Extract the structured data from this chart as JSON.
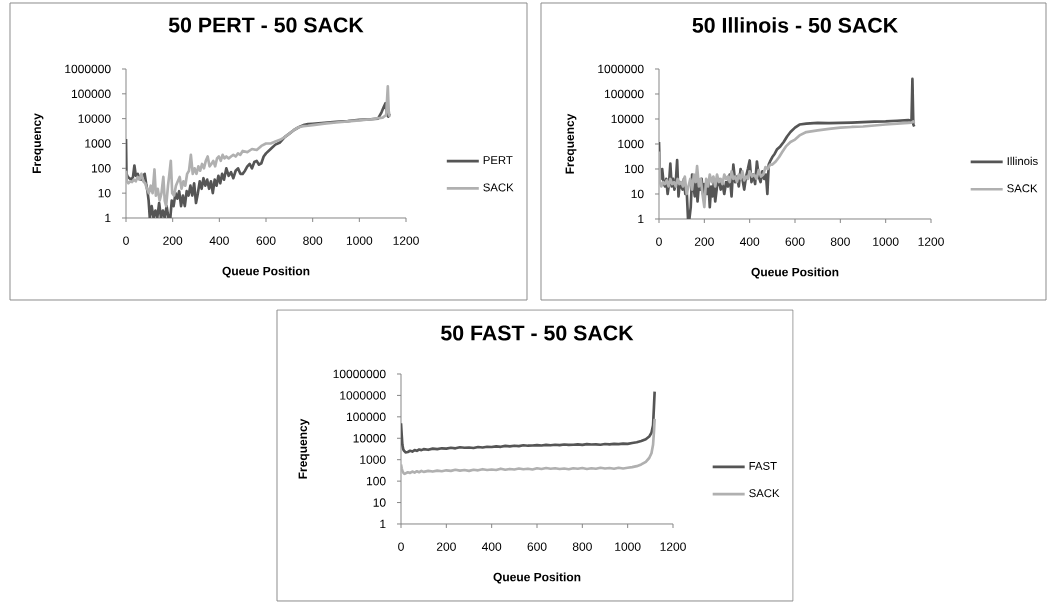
{
  "chart_data": [
    {
      "type": "line",
      "title": "50 PERT - 50 SACK",
      "xlabel": "Queue Position",
      "ylabel": "Frequency",
      "xlim": [
        0,
        1200
      ],
      "xticks": [
        0,
        200,
        400,
        600,
        800,
        1000,
        1200
      ],
      "ylim": [
        1,
        1000000
      ],
      "yticks": [
        1,
        10,
        100,
        1000,
        10000,
        100000,
        1000000
      ],
      "log": "y",
      "legend": "right",
      "series": [
        {
          "name": "PERT",
          "color": "#555555",
          "x": [
            0,
            2,
            8,
            15,
            22,
            30,
            36,
            42,
            50,
            58,
            65,
            72,
            80,
            86,
            92,
            97,
            102,
            110,
            118,
            126,
            134,
            142,
            150,
            158,
            166,
            174,
            182,
            190,
            196,
            204,
            212,
            220,
            228,
            236,
            244,
            252,
            260,
            268,
            276,
            284,
            292,
            300,
            308,
            316,
            324,
            332,
            340,
            348,
            356,
            364,
            372,
            380,
            388,
            396,
            404,
            412,
            420,
            430,
            440,
            450,
            460,
            470,
            480,
            490,
            500,
            510,
            520,
            530,
            540,
            550,
            560,
            570,
            580,
            590,
            600,
            620,
            640,
            660,
            680,
            700,
            720,
            740,
            760,
            780,
            800,
            850,
            900,
            950,
            1000,
            1050,
            1080,
            1095,
            1105,
            1112,
            1118,
            1124,
            1130
          ],
          "values": [
            1500,
            60,
            45,
            40,
            35,
            45,
            130,
            50,
            60,
            40,
            35,
            50,
            60,
            25,
            12,
            5,
            1,
            3,
            1,
            2,
            1,
            4,
            1,
            2,
            1,
            3,
            1,
            1,
            5,
            3,
            10,
            6,
            12,
            3,
            8,
            3,
            12,
            8,
            20,
            8,
            25,
            4,
            10,
            30,
            15,
            40,
            20,
            35,
            15,
            30,
            10,
            35,
            20,
            50,
            25,
            60,
            35,
            100,
            50,
            70,
            40,
            80,
            100,
            60,
            60,
            80,
            120,
            150,
            100,
            180,
            200,
            140,
            160,
            300,
            400,
            600,
            900,
            1100,
            1800,
            2500,
            3500,
            4500,
            5500,
            6000,
            6200,
            6800,
            7500,
            8000,
            9000,
            9500,
            10000,
            18000,
            30000,
            42000,
            15000,
            12000,
            16000
          ]
        },
        {
          "name": "SACK",
          "color": "#b0b0b0",
          "x": [
            0,
            4,
            10,
            18,
            26,
            34,
            42,
            50,
            58,
            66,
            74,
            82,
            90,
            98,
            106,
            114,
            122,
            128,
            136,
            144,
            152,
            160,
            166,
            172,
            180,
            186,
            192,
            198,
            206,
            214,
            222,
            230,
            238,
            246,
            254,
            262,
            270,
            278,
            286,
            294,
            302,
            310,
            318,
            326,
            334,
            342,
            350,
            358,
            366,
            374,
            382,
            390,
            398,
            406,
            414,
            422,
            430,
            440,
            450,
            460,
            470,
            480,
            490,
            500,
            520,
            540,
            560,
            580,
            600,
            620,
            640,
            660,
            680,
            700,
            720,
            740,
            760,
            780,
            800,
            850,
            900,
            950,
            1000,
            1050,
            1100,
            1115,
            1122,
            1126,
            1130
          ],
          "values": [
            80,
            30,
            25,
            30,
            28,
            35,
            30,
            45,
            35,
            60,
            30,
            25,
            15,
            10,
            20,
            10,
            90,
            8,
            15,
            5,
            10,
            45,
            5,
            3,
            20,
            60,
            200,
            10,
            8,
            20,
            30,
            45,
            15,
            30,
            20,
            60,
            80,
            350,
            60,
            100,
            60,
            120,
            80,
            150,
            100,
            200,
            300,
            120,
            150,
            200,
            120,
            250,
            300,
            200,
            350,
            250,
            300,
            250,
            300,
            350,
            300,
            400,
            350,
            500,
            450,
            600,
            550,
            800,
            1000,
            1000,
            1200,
            1400,
            1800,
            2500,
            3500,
            4500,
            5000,
            5200,
            5500,
            6300,
            7000,
            7800,
            8500,
            9500,
            11000,
            14000,
            200000,
            20000,
            12000
          ]
        }
      ]
    },
    {
      "type": "line",
      "title": "50 Illinois - 50 SACK",
      "xlabel": "Queue Position",
      "ylabel": "Frequency",
      "xlim": [
        0,
        1200
      ],
      "xticks": [
        0,
        200,
        400,
        600,
        800,
        1000,
        1200
      ],
      "ylim": [
        1,
        1000000
      ],
      "yticks": [
        1,
        10,
        100,
        1000,
        10000,
        100000,
        1000000
      ],
      "log": "y",
      "legend": "right",
      "series": [
        {
          "name": "Illinois",
          "color": "#555555",
          "x": [
            0,
            3,
            8,
            14,
            20,
            26,
            32,
            38,
            44,
            50,
            56,
            62,
            68,
            74,
            80,
            86,
            92,
            98,
            104,
            110,
            116,
            122,
            128,
            134,
            140,
            146,
            152,
            158,
            164,
            170,
            176,
            182,
            188,
            194,
            200,
            206,
            212,
            218,
            224,
            230,
            236,
            242,
            248,
            256,
            264,
            272,
            280,
            288,
            296,
            304,
            312,
            320,
            328,
            336,
            344,
            352,
            360,
            368,
            376,
            384,
            392,
            400,
            408,
            416,
            424,
            432,
            440,
            448,
            456,
            464,
            472,
            478,
            484,
            490,
            500,
            510,
            520,
            535,
            550,
            565,
            580,
            600,
            620,
            650,
            700,
            750,
            800,
            850,
            900,
            950,
            1000,
            1050,
            1100,
            1114,
            1118,
            1122,
            1126
          ],
          "values": [
            1200,
            100,
            40,
            100,
            30,
            20,
            40,
            10,
            25,
            165,
            20,
            40,
            15,
            30,
            225,
            8,
            30,
            20,
            15,
            40,
            10,
            15,
            1,
            1,
            3,
            60,
            20,
            8,
            40,
            5,
            25,
            15,
            40,
            10,
            25,
            15,
            10,
            30,
            3,
            20,
            8,
            30,
            5,
            20,
            40,
            15,
            25,
            10,
            30,
            20,
            60,
            8,
            150,
            30,
            50,
            20,
            100,
            40,
            15,
            50,
            100,
            220,
            30,
            60,
            25,
            200,
            50,
            30,
            80,
            40,
            60,
            10,
            150,
            200,
            300,
            400,
            600,
            800,
            1200,
            2000,
            3000,
            4500,
            6000,
            6500,
            7000,
            6800,
            7000,
            7200,
            7500,
            7800,
            8000,
            8500,
            9000,
            8500,
            400000,
            6000,
            5000
          ]
        },
        {
          "name": "SACK",
          "color": "#b0b0b0",
          "x": [
            0,
            4,
            10,
            18,
            26,
            34,
            42,
            50,
            58,
            66,
            74,
            82,
            90,
            98,
            106,
            114,
            122,
            130,
            138,
            146,
            154,
            162,
            168,
            176,
            184,
            192,
            200,
            208,
            216,
            224,
            232,
            240,
            248,
            256,
            264,
            272,
            280,
            288,
            296,
            304,
            312,
            320,
            328,
            336,
            344,
            352,
            360,
            368,
            376,
            384,
            392,
            400,
            410,
            420,
            430,
            440,
            450,
            460,
            470,
            480,
            490,
            500,
            515,
            530,
            545,
            560,
            580,
            600,
            620,
            650,
            700,
            750,
            800,
            850,
            900,
            950,
            1000,
            1050,
            1100,
            1114,
            1122,
            1126
          ],
          "values": [
            500,
            30,
            20,
            30,
            25,
            35,
            20,
            40,
            25,
            30,
            20,
            40,
            25,
            30,
            20,
            50,
            10,
            20,
            40,
            15,
            60,
            30,
            130,
            20,
            40,
            10,
            3,
            40,
            20,
            60,
            30,
            50,
            20,
            60,
            30,
            40,
            25,
            60,
            40,
            50,
            30,
            80,
            40,
            50,
            30,
            60,
            40,
            80,
            35,
            50,
            40,
            80,
            50,
            60,
            40,
            90,
            50,
            60,
            120,
            100,
            150,
            150,
            200,
            300,
            500,
            800,
            1200,
            1500,
            2200,
            3000,
            3500,
            4000,
            4500,
            4800,
            5000,
            5500,
            6000,
            6500,
            7000,
            7200,
            8000,
            7000
          ]
        }
      ]
    },
    {
      "type": "line",
      "title": "50 FAST - 50 SACK",
      "xlabel": "Queue Position",
      "ylabel": "Frequency",
      "xlim": [
        0,
        1200
      ],
      "xticks": [
        0,
        200,
        400,
        600,
        800,
        1000,
        1200
      ],
      "ylim": [
        1,
        10000000
      ],
      "yticks": [
        1,
        10,
        100,
        1000,
        10000,
        100000,
        1000000,
        10000000
      ],
      "log": "y",
      "legend": "right",
      "series": [
        {
          "name": "FAST",
          "color": "#555555",
          "x": [
            0,
            3,
            6,
            10,
            15,
            20,
            30,
            40,
            50,
            60,
            70,
            80,
            90,
            100,
            120,
            140,
            160,
            180,
            200,
            220,
            240,
            260,
            280,
            300,
            320,
            340,
            360,
            380,
            400,
            420,
            440,
            460,
            480,
            500,
            520,
            540,
            560,
            580,
            600,
            620,
            640,
            660,
            680,
            700,
            720,
            740,
            760,
            780,
            800,
            820,
            840,
            860,
            880,
            900,
            920,
            940,
            960,
            980,
            1000,
            1020,
            1040,
            1060,
            1080,
            1095,
            1105,
            1112,
            1116,
            1119
          ],
          "values": [
            50000,
            15000,
            5000,
            3000,
            2500,
            2200,
            2300,
            2600,
            2400,
            2800,
            2600,
            3000,
            2800,
            3100,
            2900,
            3300,
            3100,
            3400,
            3300,
            3600,
            3400,
            3800,
            3600,
            3700,
            3500,
            3900,
            3700,
            4000,
            3900,
            4200,
            4000,
            4400,
            4200,
            4500,
            4300,
            4700,
            4500,
            4600,
            4800,
            4600,
            4900,
            4700,
            5000,
            4800,
            5100,
            4900,
            5000,
            5200,
            4900,
            5300,
            5100,
            5200,
            5000,
            5400,
            5200,
            5500,
            5300,
            5600,
            5500,
            6000,
            6500,
            7500,
            9000,
            12000,
            18000,
            40000,
            300000,
            1500000
          ]
        },
        {
          "name": "SACK",
          "color": "#b0b0b0",
          "x": [
            0,
            3,
            6,
            10,
            15,
            20,
            30,
            40,
            50,
            60,
            70,
            80,
            90,
            100,
            120,
            140,
            160,
            180,
            200,
            220,
            240,
            260,
            280,
            300,
            320,
            340,
            360,
            380,
            400,
            420,
            440,
            460,
            480,
            500,
            520,
            540,
            560,
            580,
            600,
            620,
            640,
            660,
            680,
            700,
            720,
            740,
            760,
            780,
            800,
            820,
            840,
            860,
            880,
            900,
            920,
            940,
            960,
            980,
            1000,
            1020,
            1040,
            1060,
            1080,
            1095,
            1105,
            1112,
            1116,
            1119
          ],
          "values": [
            600,
            400,
            300,
            250,
            220,
            230,
            260,
            240,
            280,
            250,
            290,
            260,
            300,
            270,
            300,
            280,
            310,
            290,
            320,
            300,
            340,
            310,
            330,
            300,
            340,
            320,
            360,
            330,
            350,
            330,
            380,
            340,
            370,
            350,
            390,
            360,
            380,
            350,
            400,
            370,
            410,
            380,
            400,
            370,
            390,
            360,
            400,
            380,
            410,
            370,
            400,
            380,
            420,
            390,
            410,
            380,
            420,
            390,
            420,
            450,
            500,
            600,
            800,
            1200,
            2000,
            5000,
            20000,
            80000
          ]
        }
      ]
    }
  ]
}
